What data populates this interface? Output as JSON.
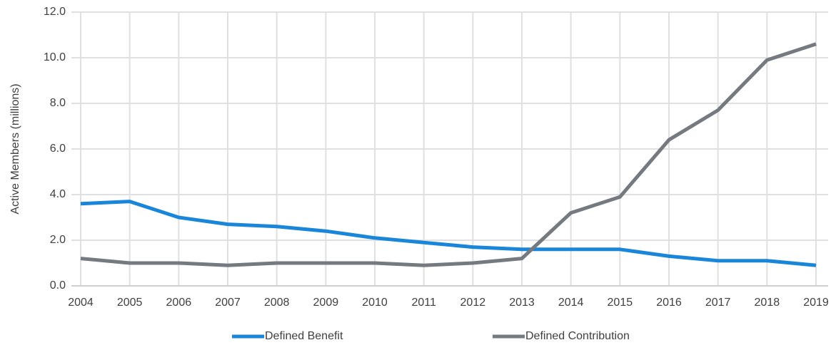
{
  "chart_data": {
    "type": "line",
    "y_label": "Active Members (millions)",
    "x": [
      2004,
      2005,
      2006,
      2007,
      2008,
      2009,
      2010,
      2011,
      2012,
      2013,
      2014,
      2015,
      2016,
      2017,
      2018,
      2019
    ],
    "xlim": [
      2004,
      2019
    ],
    "xticks": [
      2004,
      2005,
      2006,
      2007,
      2008,
      2009,
      2010,
      2011,
      2012,
      2013,
      2014,
      2015,
      2016,
      2017,
      2018,
      2019
    ],
    "ylim": [
      0,
      12
    ],
    "yticks": [
      {
        "value": 0,
        "label": "0.0"
      },
      {
        "value": 2,
        "label": "2.0"
      },
      {
        "value": 4,
        "label": "4.0"
      },
      {
        "value": 6,
        "label": "6.0"
      },
      {
        "value": 8,
        "label": "8.0"
      },
      {
        "value": 10,
        "label": "10.0"
      },
      {
        "value": 12,
        "label": "12.0"
      }
    ],
    "grid": true,
    "legend": "bottom",
    "series": [
      {
        "name": "Defined Benefit",
        "color": "#1a86d9",
        "values": [
          3.6,
          3.7,
          3.0,
          2.7,
          2.6,
          2.4,
          2.1,
          1.9,
          1.7,
          1.6,
          1.6,
          1.6,
          1.3,
          1.1,
          1.1,
          0.9
        ]
      },
      {
        "name": "Defined Contribution",
        "color": "#747a7f",
        "values": [
          1.2,
          1.0,
          1.0,
          0.9,
          1.0,
          1.0,
          1.0,
          0.9,
          1.0,
          1.2,
          3.2,
          3.9,
          6.4,
          7.7,
          9.9,
          10.6
        ]
      }
    ]
  }
}
